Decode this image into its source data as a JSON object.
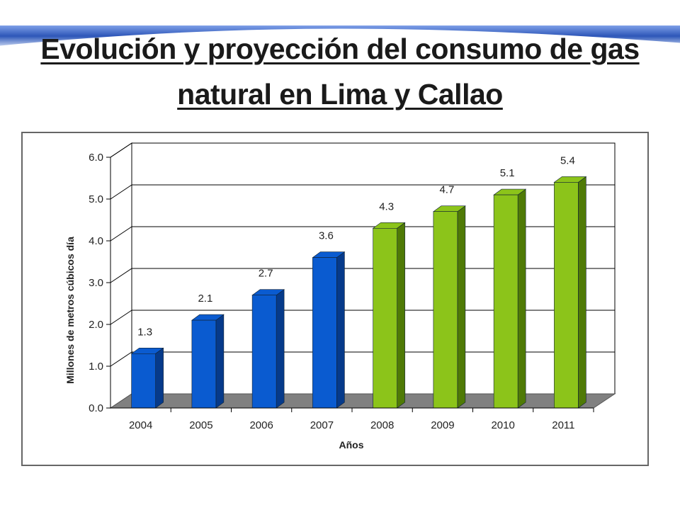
{
  "slide": {
    "title_line1": "Evolución y proyección del consumo de gas",
    "title_line2": "natural en Lima y Callao"
  },
  "colors": {
    "historical": "#0a5bd0",
    "historical_dark": "#063a8a",
    "projection": "#8cc41a",
    "projection_dark": "#4f7a06",
    "floor": "#808080",
    "banner": "#3a62c0"
  },
  "chart_data": {
    "type": "bar",
    "style": "3d",
    "categories": [
      "2004",
      "2005",
      "2006",
      "2007",
      "2008",
      "2009",
      "2010",
      "2011"
    ],
    "values": [
      1.3,
      2.1,
      2.7,
      3.6,
      4.3,
      4.7,
      5.1,
      5.4
    ],
    "data_labels": [
      "1.3",
      "2.1",
      "2.7",
      "3.6",
      "4.3",
      "4.7",
      "5.1",
      "5.4"
    ],
    "bar_groups": [
      "historical",
      "historical",
      "historical",
      "historical",
      "projection",
      "projection",
      "projection",
      "projection"
    ],
    "xlabel": "Años",
    "ylabel": "Millones de metros cúbicos día",
    "ylim": [
      0,
      6
    ],
    "yticks": [
      "0.0",
      "1.0",
      "2.0",
      "3.0",
      "4.0",
      "5.0",
      "6.0"
    ],
    "grid": true,
    "legend": false
  }
}
